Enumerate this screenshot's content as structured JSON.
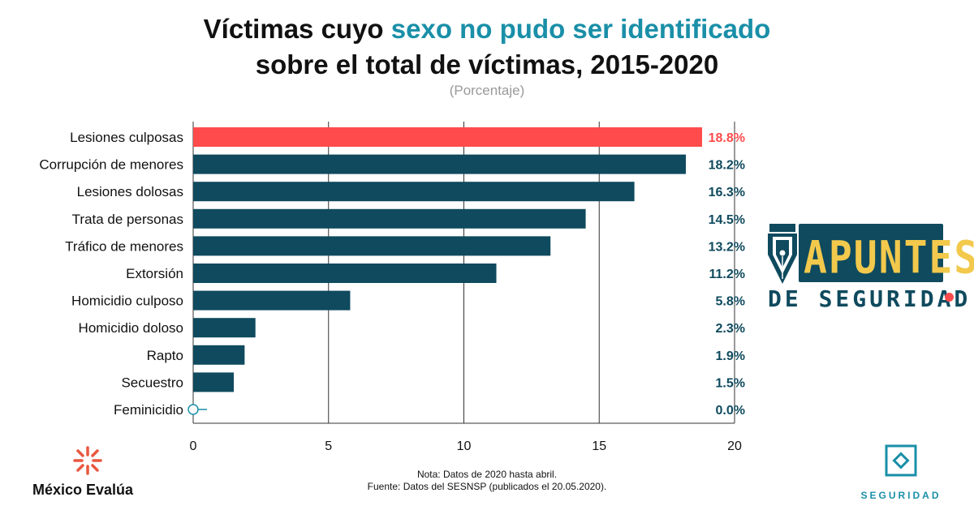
{
  "header": {
    "title_part1": "Víctimas cuyo ",
    "title_highlight": "sexo no pudo ser identificado",
    "title_line2": "sobre el total de víctimas, 2015-2020",
    "subtitle": "(Porcentaje)"
  },
  "chart_data": {
    "type": "bar",
    "orientation": "horizontal",
    "categories": [
      "Lesiones culposas",
      "Corrupción de menores",
      "Lesiones dolosas",
      "Trata de personas",
      "Tráfico de menores",
      "Extorsión",
      "Homicidio culposo",
      "Homicidio doloso",
      "Rapto",
      "Secuestro",
      "Feminicidio"
    ],
    "values": [
      18.8,
      18.2,
      16.3,
      14.5,
      13.2,
      11.2,
      5.8,
      2.3,
      1.9,
      1.5,
      0.0
    ],
    "value_labels": [
      "18.8%",
      "18.2%",
      "16.3%",
      "14.5%",
      "13.2%",
      "11.2%",
      "5.8%",
      "2.3%",
      "1.9%",
      "1.5%",
      "0.0%"
    ],
    "xlim": [
      0,
      20
    ],
    "xticks": [
      0,
      5,
      10,
      15,
      20
    ],
    "grid": true,
    "colors": {
      "highlight": "#ff4b4b",
      "default": "#0f4a5e",
      "zero_marker": "#1a8fa8"
    },
    "highlight_index": 0
  },
  "notes": {
    "line1": "Nota: Datos de 2020 hasta abril.",
    "line2": "Fuente: Datos del SESNSP (publicados el 20.05.2020)."
  },
  "logos": {
    "mexico_evalua": "México Evalúa",
    "apuntes": "APUNTES",
    "de_seguridad": "DE SEGURIDAD",
    "seguridad": "SEGURIDAD"
  }
}
